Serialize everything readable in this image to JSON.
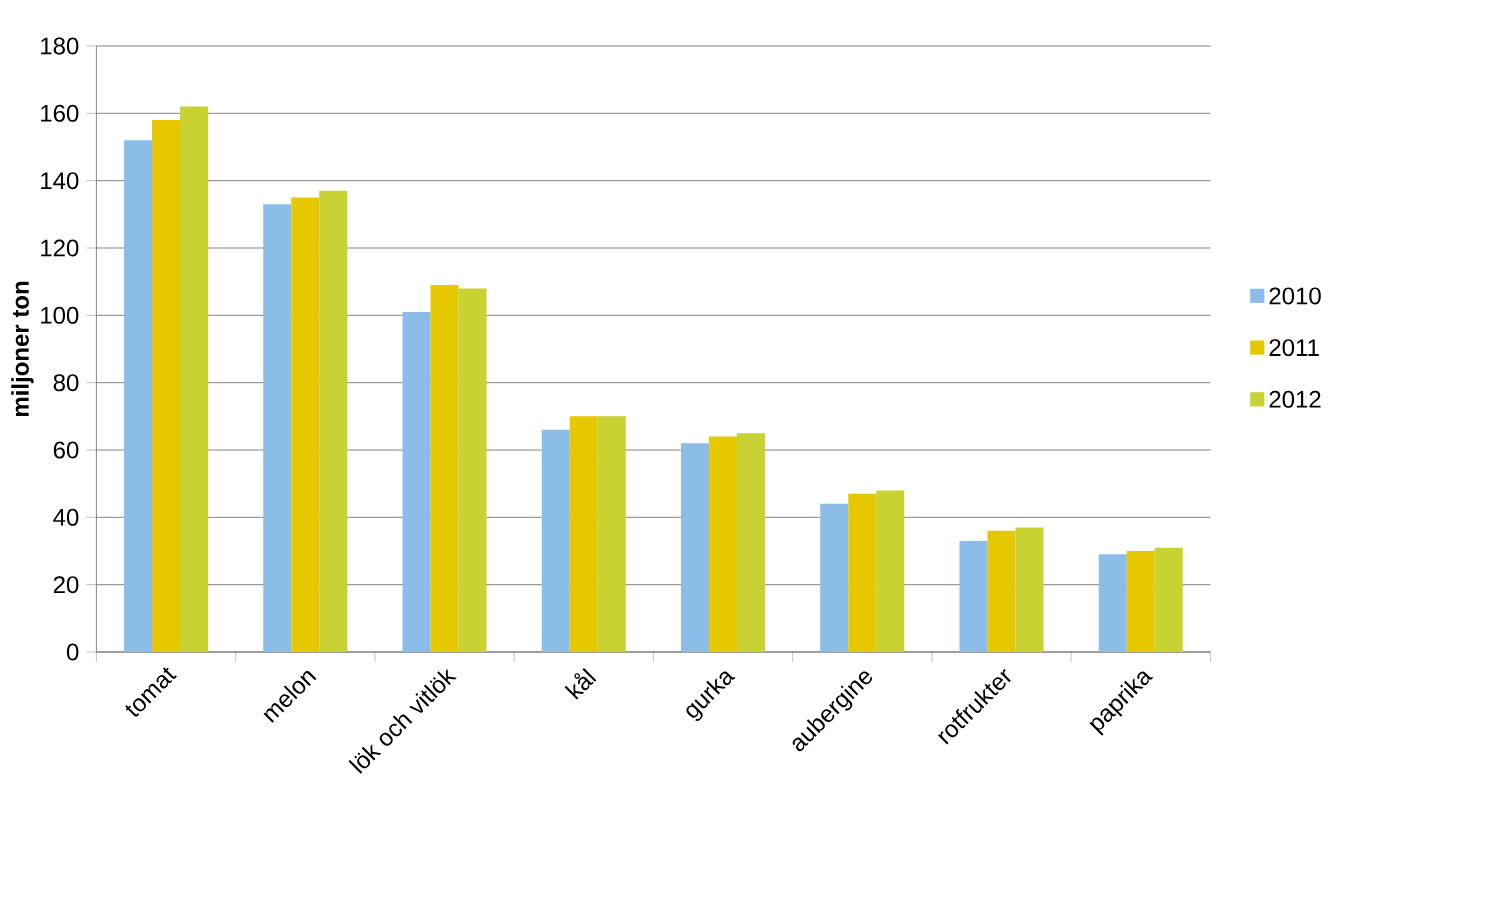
{
  "chart_data": {
    "type": "bar",
    "ylabel": "miljoner ton",
    "categories": [
      "tomat",
      "melon",
      "lök och vitlök",
      "kål",
      "gurka",
      "aubergine",
      "rotfrukter",
      "paprika"
    ],
    "series": [
      {
        "name": "2010",
        "color": "#8cbde8",
        "values": [
          152,
          133,
          101,
          66,
          62,
          44,
          33,
          29
        ]
      },
      {
        "name": "2011",
        "color": "#e6c800",
        "values": [
          158,
          135,
          109,
          70,
          64,
          47,
          36,
          30
        ]
      },
      {
        "name": "2012",
        "color": "#c8d232",
        "values": [
          162,
          137,
          108,
          70,
          65,
          48,
          37,
          31
        ]
      }
    ],
    "ylim": [
      0,
      180
    ],
    "yticks": [
      0,
      20,
      40,
      60,
      80,
      100,
      120,
      140,
      160,
      180
    ],
    "grid": "y",
    "legend": "right"
  }
}
